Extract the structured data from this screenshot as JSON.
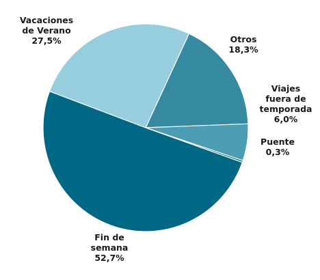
{
  "chart_data": {
    "type": "pie",
    "title": "",
    "slices": [
      {
        "name": "Fin de semana",
        "value": 52.7,
        "value_label": "52,7%",
        "color": "#006885"
      },
      {
        "name": "Vacaciones de Verano",
        "value": 27.5,
        "value_label": "27,5%",
        "color": "#96cede"
      },
      {
        "name": "Otros",
        "value": 18.3,
        "value_label": "18,3%",
        "color": "#358aa1"
      },
      {
        "name": "Viajes fuera de temporada",
        "value": 6.0,
        "value_label": "6,0%",
        "color": "#4b9db4"
      },
      {
        "name": "Puente",
        "value": 0.3,
        "value_label": "0,3%",
        "color": "#006885"
      }
    ],
    "labels": [
      {
        "lines": [
          "Fin de",
          "semana"
        ],
        "value_label": "52,7%"
      },
      {
        "lines": [
          "Vacaciones",
          "de Verano"
        ],
        "value_label": "27,5%"
      },
      {
        "lines": [
          "Otros"
        ],
        "value_label": "18,3%"
      },
      {
        "lines": [
          "Viajes",
          "fuera de",
          "temporada"
        ],
        "value_label": "6,0%"
      },
      {
        "lines": [
          "Puente"
        ],
        "value_label": "0,3%"
      }
    ],
    "legend": "none"
  }
}
